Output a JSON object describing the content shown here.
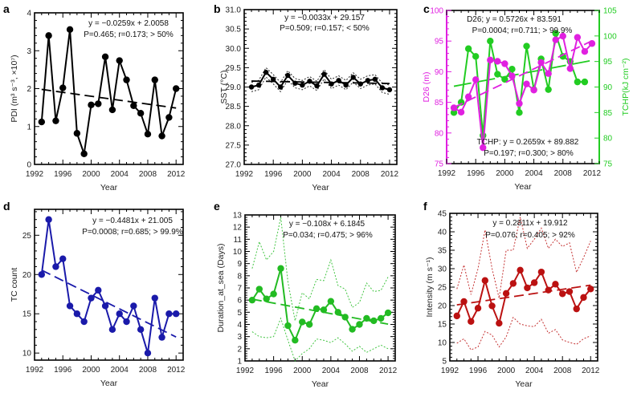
{
  "chart_data": [
    {
      "panel": "a",
      "type": "line",
      "xlabel": "Year",
      "ylabel": "PDI (m³ s⁻³, ×10⁷)",
      "x": [
        1993,
        1994,
        1995,
        1996,
        1997,
        1998,
        1999,
        2000,
        2001,
        2002,
        2003,
        2004,
        2005,
        2006,
        2007,
        2008,
        2009,
        2010,
        2011,
        2012
      ],
      "xticks": [
        1992,
        1996,
        2000,
        2004,
        2008,
        2012
      ],
      "xlim": [
        1992,
        2013
      ],
      "ylim": [
        0,
        4
      ],
      "yticks": [
        0,
        1,
        2,
        3,
        4
      ],
      "series": [
        {
          "name": "PDI",
          "color": "#000000",
          "axis": "left",
          "values": [
            1.12,
            3.4,
            1.15,
            2.02,
            3.56,
            0.82,
            0.28,
            1.57,
            1.6,
            2.84,
            1.44,
            2.74,
            2.23,
            1.55,
            1.35,
            0.8,
            2.23,
            0.75,
            1.24,
            2.0
          ],
          "trend": {
            "slope": -0.0259,
            "intercept": 2.0058
          }
        }
      ],
      "annotation": [
        "y = −0.0259x + 2.0058",
        "P=0.465; r=0.173; > 50%"
      ]
    },
    {
      "panel": "b",
      "type": "line",
      "xlabel": "Year",
      "ylabel": "SST (°C)",
      "x": [
        1993,
        1994,
        1995,
        1996,
        1997,
        1998,
        1999,
        2000,
        2001,
        2002,
        2003,
        2004,
        2005,
        2006,
        2007,
        2008,
        2009,
        2010,
        2011,
        2012
      ],
      "xticks": [
        1992,
        1996,
        2000,
        2004,
        2008,
        2012
      ],
      "xlim": [
        1992,
        2013
      ],
      "ylim": [
        27,
        31
      ],
      "yticks": [
        27.0,
        27.5,
        28.0,
        28.5,
        29.0,
        29.5,
        30.0,
        30.5,
        31.0
      ],
      "series": [
        {
          "name": "SST",
          "color": "#000000",
          "axis": "left",
          "values": [
            29.0,
            29.05,
            29.38,
            29.2,
            29.0,
            29.3,
            29.1,
            29.05,
            29.15,
            29.03,
            29.33,
            29.08,
            29.17,
            29.05,
            29.25,
            29.08,
            29.17,
            29.2,
            28.98,
            28.93
          ],
          "upper": [
            29.12,
            29.17,
            29.5,
            29.32,
            29.12,
            29.42,
            29.22,
            29.17,
            29.27,
            29.15,
            29.45,
            29.2,
            29.29,
            29.17,
            29.37,
            29.2,
            29.29,
            29.32,
            29.1,
            29.05
          ],
          "lower": [
            28.88,
            28.93,
            29.26,
            29.08,
            28.88,
            29.18,
            28.98,
            28.93,
            29.03,
            28.91,
            29.21,
            28.96,
            29.05,
            28.93,
            29.13,
            28.96,
            29.05,
            29.08,
            28.86,
            28.81
          ],
          "trend": {
            "slope": -0.0033,
            "intercept": 29.157
          }
        }
      ],
      "annotation": [
        "y = −0.0033x + 29.157",
        "P=0.509; r=0.157; < 50%"
      ]
    },
    {
      "panel": "c",
      "type": "line",
      "xlabel": "Year",
      "ylabel": "D26 (m)",
      "ylabel_right": "TCHP(kJ cm⁻²)",
      "x": [
        1993,
        1994,
        1995,
        1996,
        1997,
        1998,
        1999,
        2000,
        2001,
        2002,
        2003,
        2004,
        2005,
        2006,
        2007,
        2008,
        2009,
        2010,
        2011,
        2012
      ],
      "xticks": [
        1992,
        1996,
        2000,
        2004,
        2008,
        2012
      ],
      "xlim": [
        1992,
        2013
      ],
      "ylim": [
        75,
        100
      ],
      "yticks": [
        75,
        80,
        85,
        90,
        95,
        100
      ],
      "ylim_right": [
        75,
        105
      ],
      "yticks_right": [
        75,
        80,
        85,
        90,
        95,
        100,
        105
      ],
      "series": [
        {
          "name": "TCHP",
          "color": "#22cc22",
          "axis": "right",
          "values": [
            85,
            87,
            97.5,
            96,
            80.5,
            99,
            92.5,
            91.5,
            93.5,
            85,
            98,
            89.5,
            95.5,
            89.5,
            100.5,
            96,
            95,
            91,
            91,
            null
          ],
          "trend": {
            "slope": 0.2659,
            "intercept": 89.882
          }
        },
        {
          "name": "D26",
          "color": "#e020e0",
          "axis": "left",
          "values": [
            84.1,
            83.4,
            85.9,
            88.7,
            77.6,
            91.9,
            91.7,
            91.3,
            89.3,
            84.8,
            88.0,
            87.0,
            91.5,
            89.7,
            95.2,
            95.8,
            90.5,
            95.6,
            93.3,
            94.6
          ],
          "trend": {
            "slope": 0.5726,
            "intercept": 83.591
          }
        }
      ],
      "annotation": [
        "D26; y = 0.5726x + 83.591",
        "P=0.0004; r=0.711; > 99.9%",
        "TCHP: y = 0.2659x + 89.882",
        "P=0.197; r=0.300; > 80%"
      ]
    },
    {
      "panel": "d",
      "type": "line",
      "xlabel": "Year",
      "ylabel": "TC count",
      "x": [
        1993,
        1994,
        1995,
        1996,
        1997,
        1998,
        1999,
        2000,
        2001,
        2002,
        2003,
        2004,
        2005,
        2006,
        2007,
        2008,
        2009,
        2010,
        2011,
        2012
      ],
      "xticks": [
        1992,
        1996,
        2000,
        2004,
        2008,
        2012
      ],
      "xlim": [
        1992,
        2013
      ],
      "ylim": [
        9.1,
        28.3
      ],
      "yticks": [
        10,
        15,
        20,
        25
      ],
      "series": [
        {
          "name": "TC count",
          "color": "#1a1aaa",
          "axis": "left",
          "values": [
            20,
            27,
            21,
            22,
            16,
            15,
            14,
            17,
            18,
            16,
            13,
            15,
            14,
            16,
            13,
            10,
            17,
            12,
            15,
            15
          ],
          "trend": {
            "slope": -0.4481,
            "intercept": 21.005
          }
        }
      ],
      "annotation": [
        "y = −0.4481x + 21.005",
        "P=0.0008; r=0.685; > 99.9%"
      ]
    },
    {
      "panel": "e",
      "type": "line",
      "xlabel": "Year",
      "ylabel": "Duration_at_sea (Days)",
      "x": [
        1993,
        1994,
        1995,
        1996,
        1997,
        1998,
        1999,
        2000,
        2001,
        2002,
        2003,
        2004,
        2005,
        2006,
        2007,
        2008,
        2009,
        2010,
        2011,
        2012
      ],
      "xticks": [
        1992,
        1996,
        2000,
        2004,
        2008,
        2012
      ],
      "xlim": [
        1992,
        2013
      ],
      "ylim": [
        1,
        13
      ],
      "yticks": [
        1,
        2,
        3,
        4,
        5,
        6,
        7,
        8,
        9,
        10,
        11,
        12,
        13
      ],
      "series": [
        {
          "name": "Duration at sea",
          "color": "#22bb22",
          "axis": "left",
          "values": [
            6.0,
            6.9,
            6.1,
            6.5,
            8.6,
            3.9,
            2.7,
            4.2,
            4.0,
            5.3,
            5.2,
            5.9,
            5.0,
            4.6,
            3.6,
            4.0,
            4.5,
            4.3,
            4.5,
            4.95
          ],
          "upper": [
            8.6,
            10.8,
            9.3,
            10,
            12.8,
            7.5,
            4.3,
            6.6,
            6.1,
            7.7,
            7.6,
            9.3,
            7.2,
            6.9,
            5.4,
            5.8,
            7.4,
            6.7,
            6.8,
            7.9
          ],
          "lower": [
            3.4,
            3.0,
            2.9,
            3.0,
            4.5,
            2.7,
            1.0,
            1.6,
            2.0,
            2.8,
            2.7,
            2.5,
            2.9,
            2.4,
            1.8,
            2.2,
            1.7,
            2.0,
            2.3,
            2.0
          ],
          "trend": {
            "slope": -0.108,
            "intercept": 6.1845
          }
        }
      ],
      "annotation": [
        "y = −0.108x + 6.1845",
        "P=0.034; r=0.475; > 96%"
      ]
    },
    {
      "panel": "f",
      "type": "line",
      "xlabel": "Year",
      "ylabel": "Intensity (m s⁻¹)",
      "x": [
        1993,
        1994,
        1995,
        1996,
        1997,
        1998,
        1999,
        2000,
        2001,
        2002,
        2003,
        2004,
        2005,
        2006,
        2007,
        2008,
        2009,
        2010,
        2011,
        2012
      ],
      "xticks": [
        1992,
        1996,
        2000,
        2004,
        2008,
        2012
      ],
      "xlim": [
        1992,
        2013
      ],
      "ylim": [
        5,
        45
      ],
      "yticks": [
        5,
        10,
        15,
        20,
        25,
        30,
        35,
        40,
        45
      ],
      "series": [
        {
          "name": "Intensity",
          "color": "#bb1111",
          "axis": "left",
          "values": [
            17.2,
            21.1,
            15.7,
            19.3,
            26.8,
            19.9,
            15.2,
            23.3,
            26.0,
            29.6,
            24.8,
            26.2,
            29.1,
            24.2,
            25.8,
            23.2,
            23.8,
            19.1,
            22.2,
            24.5
          ],
          "upper": [
            24.5,
            31,
            23,
            30,
            40.5,
            30,
            22,
            35,
            35,
            44,
            35.5,
            38,
            41,
            35.5,
            38,
            36,
            37,
            29,
            33,
            37.5
          ],
          "lower": [
            9.8,
            11,
            8,
            8.8,
            13,
            12,
            8.8,
            11.5,
            16.8,
            15,
            14.5,
            14.3,
            16.3,
            12.5,
            13.5,
            10.7,
            10,
            9.5,
            11,
            11.8
          ],
          "trend": {
            "slope": 0.2811,
            "intercept": 19.912
          }
        }
      ],
      "annotation": [
        "y = 0.2811x + 19.912",
        "P=0.076; r=0.405; > 92%"
      ]
    }
  ]
}
